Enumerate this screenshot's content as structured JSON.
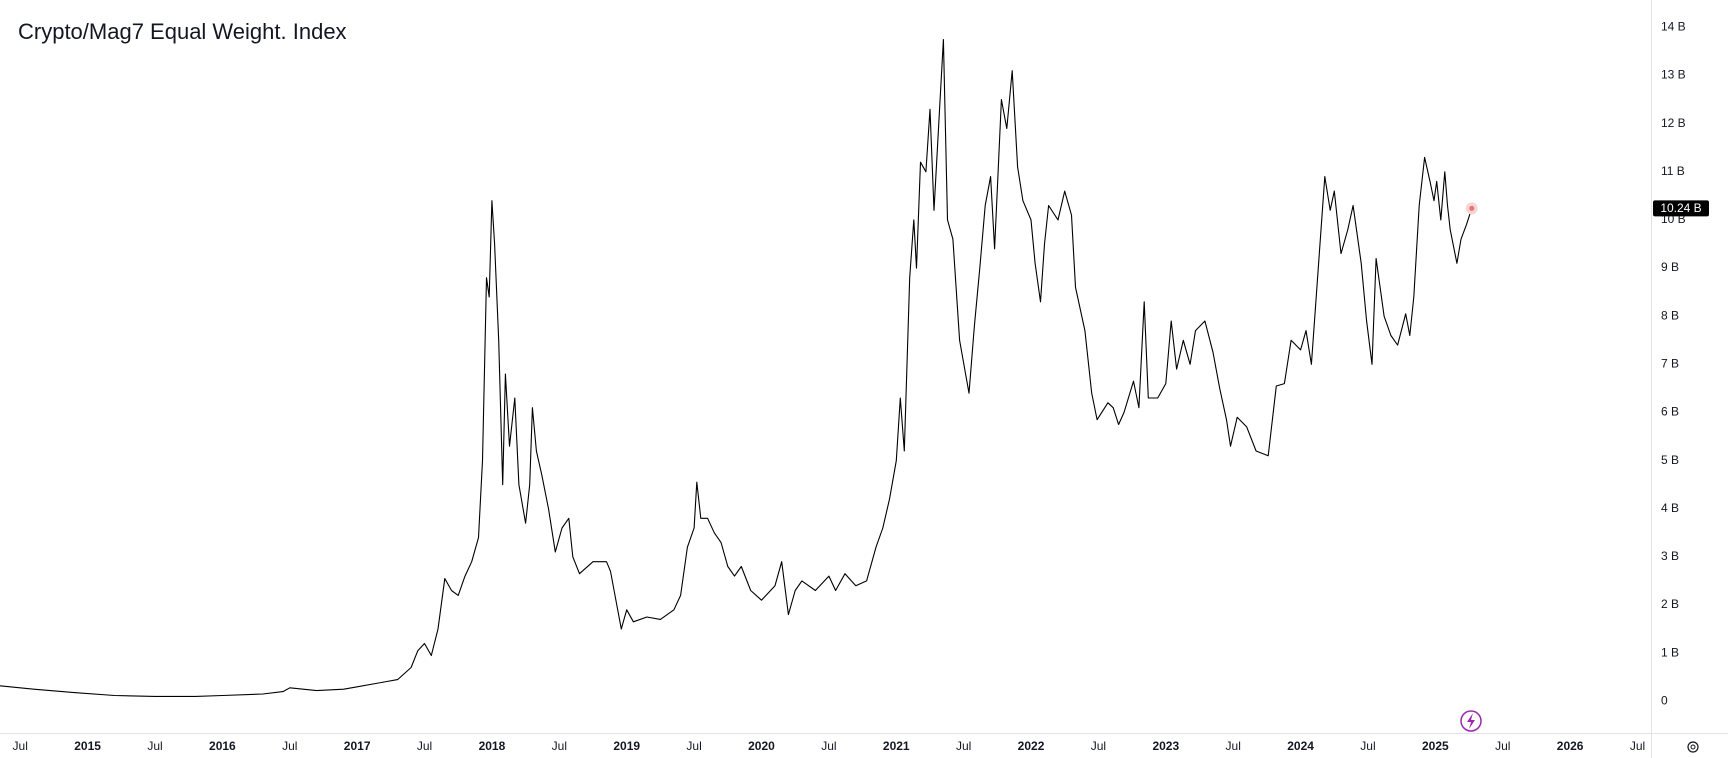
{
  "chart_data": {
    "type": "line",
    "title": "Crypto/Mag7 Equal Weight. Index",
    "x": [
      2014.35,
      2014.6,
      2014.9,
      2015.2,
      2015.5,
      2015.8,
      2016.0,
      2016.3,
      2016.45,
      2016.5,
      2016.7,
      2016.9,
      2017.0,
      2017.2,
      2017.3,
      2017.4,
      2017.45,
      2017.5,
      2017.55,
      2017.6,
      2017.65,
      2017.7,
      2017.75,
      2017.8,
      2017.85,
      2017.9,
      2017.93,
      2017.96,
      2017.98,
      2018.0,
      2018.02,
      2018.05,
      2018.08,
      2018.1,
      2018.13,
      2018.17,
      2018.2,
      2018.25,
      2018.28,
      2018.3,
      2018.33,
      2018.37,
      2018.42,
      2018.47,
      2018.52,
      2018.57,
      2018.6,
      2018.65,
      2018.75,
      2018.85,
      2018.88,
      2018.92,
      2018.96,
      2019.0,
      2019.05,
      2019.15,
      2019.25,
      2019.35,
      2019.4,
      2019.45,
      2019.5,
      2019.52,
      2019.55,
      2019.6,
      2019.65,
      2019.7,
      2019.75,
      2019.8,
      2019.85,
      2019.92,
      2020.0,
      2020.1,
      2020.15,
      2020.2,
      2020.25,
      2020.3,
      2020.4,
      2020.5,
      2020.55,
      2020.62,
      2020.7,
      2020.78,
      2020.85,
      2020.9,
      2020.95,
      2021.0,
      2021.03,
      2021.06,
      2021.1,
      2021.13,
      2021.15,
      2021.18,
      2021.22,
      2021.25,
      2021.28,
      2021.35,
      2021.38,
      2021.42,
      2021.47,
      2021.54,
      2021.58,
      2021.62,
      2021.66,
      2021.7,
      2021.73,
      2021.78,
      2021.82,
      2021.86,
      2021.9,
      2021.94,
      2022.0,
      2022.03,
      2022.07,
      2022.1,
      2022.13,
      2022.2,
      2022.25,
      2022.3,
      2022.33,
      2022.4,
      2022.45,
      2022.49,
      2022.57,
      2022.61,
      2022.65,
      2022.69,
      2022.76,
      2022.8,
      2022.84,
      2022.87,
      2022.94,
      2023.0,
      2023.04,
      2023.08,
      2023.13,
      2023.18,
      2023.22,
      2023.29,
      2023.35,
      2023.4,
      2023.45,
      2023.48,
      2023.53,
      2023.6,
      2023.67,
      2023.76,
      2023.82,
      2023.88,
      2023.93,
      2024.0,
      2024.04,
      2024.08,
      2024.13,
      2024.18,
      2024.22,
      2024.25,
      2024.3,
      2024.35,
      2024.39,
      2024.45,
      2024.49,
      2024.53,
      2024.56,
      2024.62,
      2024.67,
      2024.72,
      2024.78,
      2024.81,
      2024.84,
      2024.88,
      2024.92,
      2024.96,
      2024.99,
      2025.01,
      2025.04,
      2025.07,
      2025.09,
      2025.11,
      2025.16,
      2025.19,
      2025.23,
      2025.27
    ],
    "series": [
      {
        "name": "Crypto/Mag7 Equal Weight. Index",
        "color": "#000000",
        "values": [
          0.32,
          0.25,
          0.18,
          0.12,
          0.1,
          0.1,
          0.12,
          0.15,
          0.2,
          0.28,
          0.22,
          0.25,
          0.3,
          0.4,
          0.45,
          0.7,
          1.05,
          1.2,
          0.95,
          1.5,
          2.55,
          2.3,
          2.2,
          2.6,
          2.9,
          3.4,
          5.0,
          8.8,
          8.4,
          10.4,
          9.5,
          7.5,
          4.5,
          6.8,
          5.3,
          6.3,
          4.5,
          3.7,
          4.5,
          6.1,
          5.2,
          4.7,
          4.0,
          3.1,
          3.6,
          3.8,
          3.0,
          2.65,
          2.9,
          2.9,
          2.7,
          2.1,
          1.5,
          1.9,
          1.65,
          1.75,
          1.7,
          1.9,
          2.2,
          3.2,
          3.6,
          4.55,
          3.8,
          3.8,
          3.5,
          3.3,
          2.8,
          2.6,
          2.8,
          2.3,
          2.1,
          2.4,
          2.9,
          1.8,
          2.3,
          2.5,
          2.3,
          2.6,
          2.3,
          2.65,
          2.4,
          2.5,
          3.2,
          3.6,
          4.2,
          5.0,
          6.3,
          5.2,
          8.8,
          10.0,
          9.0,
          11.2,
          11.0,
          12.3,
          10.2,
          13.75,
          10.0,
          9.6,
          7.5,
          6.4,
          7.8,
          9.0,
          10.3,
          10.9,
          9.4,
          12.5,
          11.9,
          13.1,
          11.1,
          10.4,
          10.0,
          9.1,
          8.3,
          9.5,
          10.3,
          10.0,
          10.6,
          10.1,
          8.6,
          7.7,
          6.4,
          5.85,
          6.2,
          6.1,
          5.75,
          6.0,
          6.65,
          6.1,
          8.3,
          6.3,
          6.3,
          6.6,
          7.9,
          6.9,
          7.5,
          7.0,
          7.7,
          7.9,
          7.25,
          6.5,
          5.85,
          5.3,
          5.9,
          5.7,
          5.2,
          5.1,
          6.55,
          6.6,
          7.5,
          7.3,
          7.7,
          7.0,
          8.95,
          10.9,
          10.2,
          10.6,
          9.3,
          9.8,
          10.3,
          9.1,
          7.9,
          7.0,
          9.2,
          8.0,
          7.6,
          7.4,
          8.05,
          7.6,
          8.4,
          10.3,
          11.3,
          10.8,
          10.4,
          10.8,
          10.0,
          11.0,
          10.3,
          9.8,
          9.1,
          9.6,
          9.9,
          10.24
        ],
        "value_labels": [
          null,
          null,
          null,
          null,
          null,
          null,
          null,
          null,
          null,
          null,
          null,
          null,
          null,
          null,
          null,
          null,
          null,
          null,
          null,
          null,
          null,
          null,
          null,
          null,
          null,
          null,
          null,
          null,
          null,
          null,
          null,
          null,
          null,
          null,
          null,
          null,
          null,
          null,
          null,
          null,
          null,
          null,
          null,
          null,
          null,
          null,
          null,
          null,
          null,
          null,
          null,
          null,
          null,
          null,
          null,
          null,
          null,
          null,
          null,
          null,
          null,
          null,
          null,
          null,
          null,
          null,
          null,
          null,
          null,
          null,
          null,
          null,
          null,
          null,
          null,
          null,
          null,
          null,
          null,
          null,
          null,
          null,
          null,
          null,
          null,
          null,
          null,
          null,
          null,
          null,
          null,
          null,
          null,
          null,
          null,
          null,
          null,
          null,
          null,
          null,
          null,
          null,
          null,
          null,
          null,
          null,
          null,
          null,
          null,
          null,
          null,
          null,
          null,
          null,
          null,
          null,
          null,
          null,
          null,
          null,
          null,
          null,
          null,
          null,
          null,
          null,
          null,
          null,
          null,
          null,
          null,
          null,
          null,
          null,
          null,
          null,
          null,
          null,
          null,
          null,
          null,
          null,
          null,
          null,
          null,
          null,
          null,
          null,
          null,
          null,
          null,
          null,
          null,
          null,
          null,
          null,
          null,
          null,
          null,
          null,
          null,
          null,
          null,
          null,
          null,
          null,
          null,
          null,
          null,
          null,
          null,
          null,
          null,
          null,
          null,
          null,
          null,
          null,
          null,
          null,
          null,
          "10.24 B"
        ]
      }
    ],
    "xlim": [
      2014.35,
      2026.6
    ],
    "xticks": [
      {
        "value": 2014.5,
        "label": "Jul"
      },
      2015,
      {
        "value": 2015.5,
        "label": "Jul"
      },
      2016,
      {
        "value": 2016.5,
        "label": "Jul"
      },
      2017,
      {
        "value": 2017.5,
        "label": "Jul"
      },
      2018,
      {
        "value": 2018.5,
        "label": "Jul"
      },
      2019,
      {
        "value": 2019.5,
        "label": "Jul"
      },
      2020,
      {
        "value": 2020.5,
        "label": "Jul"
      },
      2021,
      {
        "value": 2021.5,
        "label": "Jul"
      },
      2022,
      {
        "value": 2022.5,
        "label": "Jul"
      },
      2023,
      {
        "value": 2023.5,
        "label": "Jul"
      },
      2024,
      {
        "value": 2024.5,
        "label": "Jul"
      },
      2025,
      {
        "value": 2025.5,
        "label": "Jul"
      },
      2026,
      {
        "value": 2026.5,
        "label": "Jul"
      }
    ],
    "ylim": [
      -0.66,
      14.57
    ],
    "yticks": [
      0,
      {
        "value": 1,
        "label": "1 B"
      },
      {
        "value": 2,
        "label": "2 B"
      },
      {
        "value": 3,
        "label": "3 B"
      },
      {
        "value": 4,
        "label": "4 B"
      },
      {
        "value": 5,
        "label": "5 B"
      },
      {
        "value": 6,
        "label": "6 B"
      },
      {
        "value": 7,
        "label": "7 B"
      },
      {
        "value": 8,
        "label": "8 B"
      },
      {
        "value": 9,
        "label": "9 B"
      },
      {
        "value": 10,
        "label": "10 B"
      },
      {
        "value": 11,
        "label": "11 B"
      },
      {
        "value": 12,
        "label": "12 B"
      },
      {
        "value": 13,
        "label": "13 B"
      },
      {
        "value": 14,
        "label": "14 B"
      }
    ],
    "grid": false
  }
}
